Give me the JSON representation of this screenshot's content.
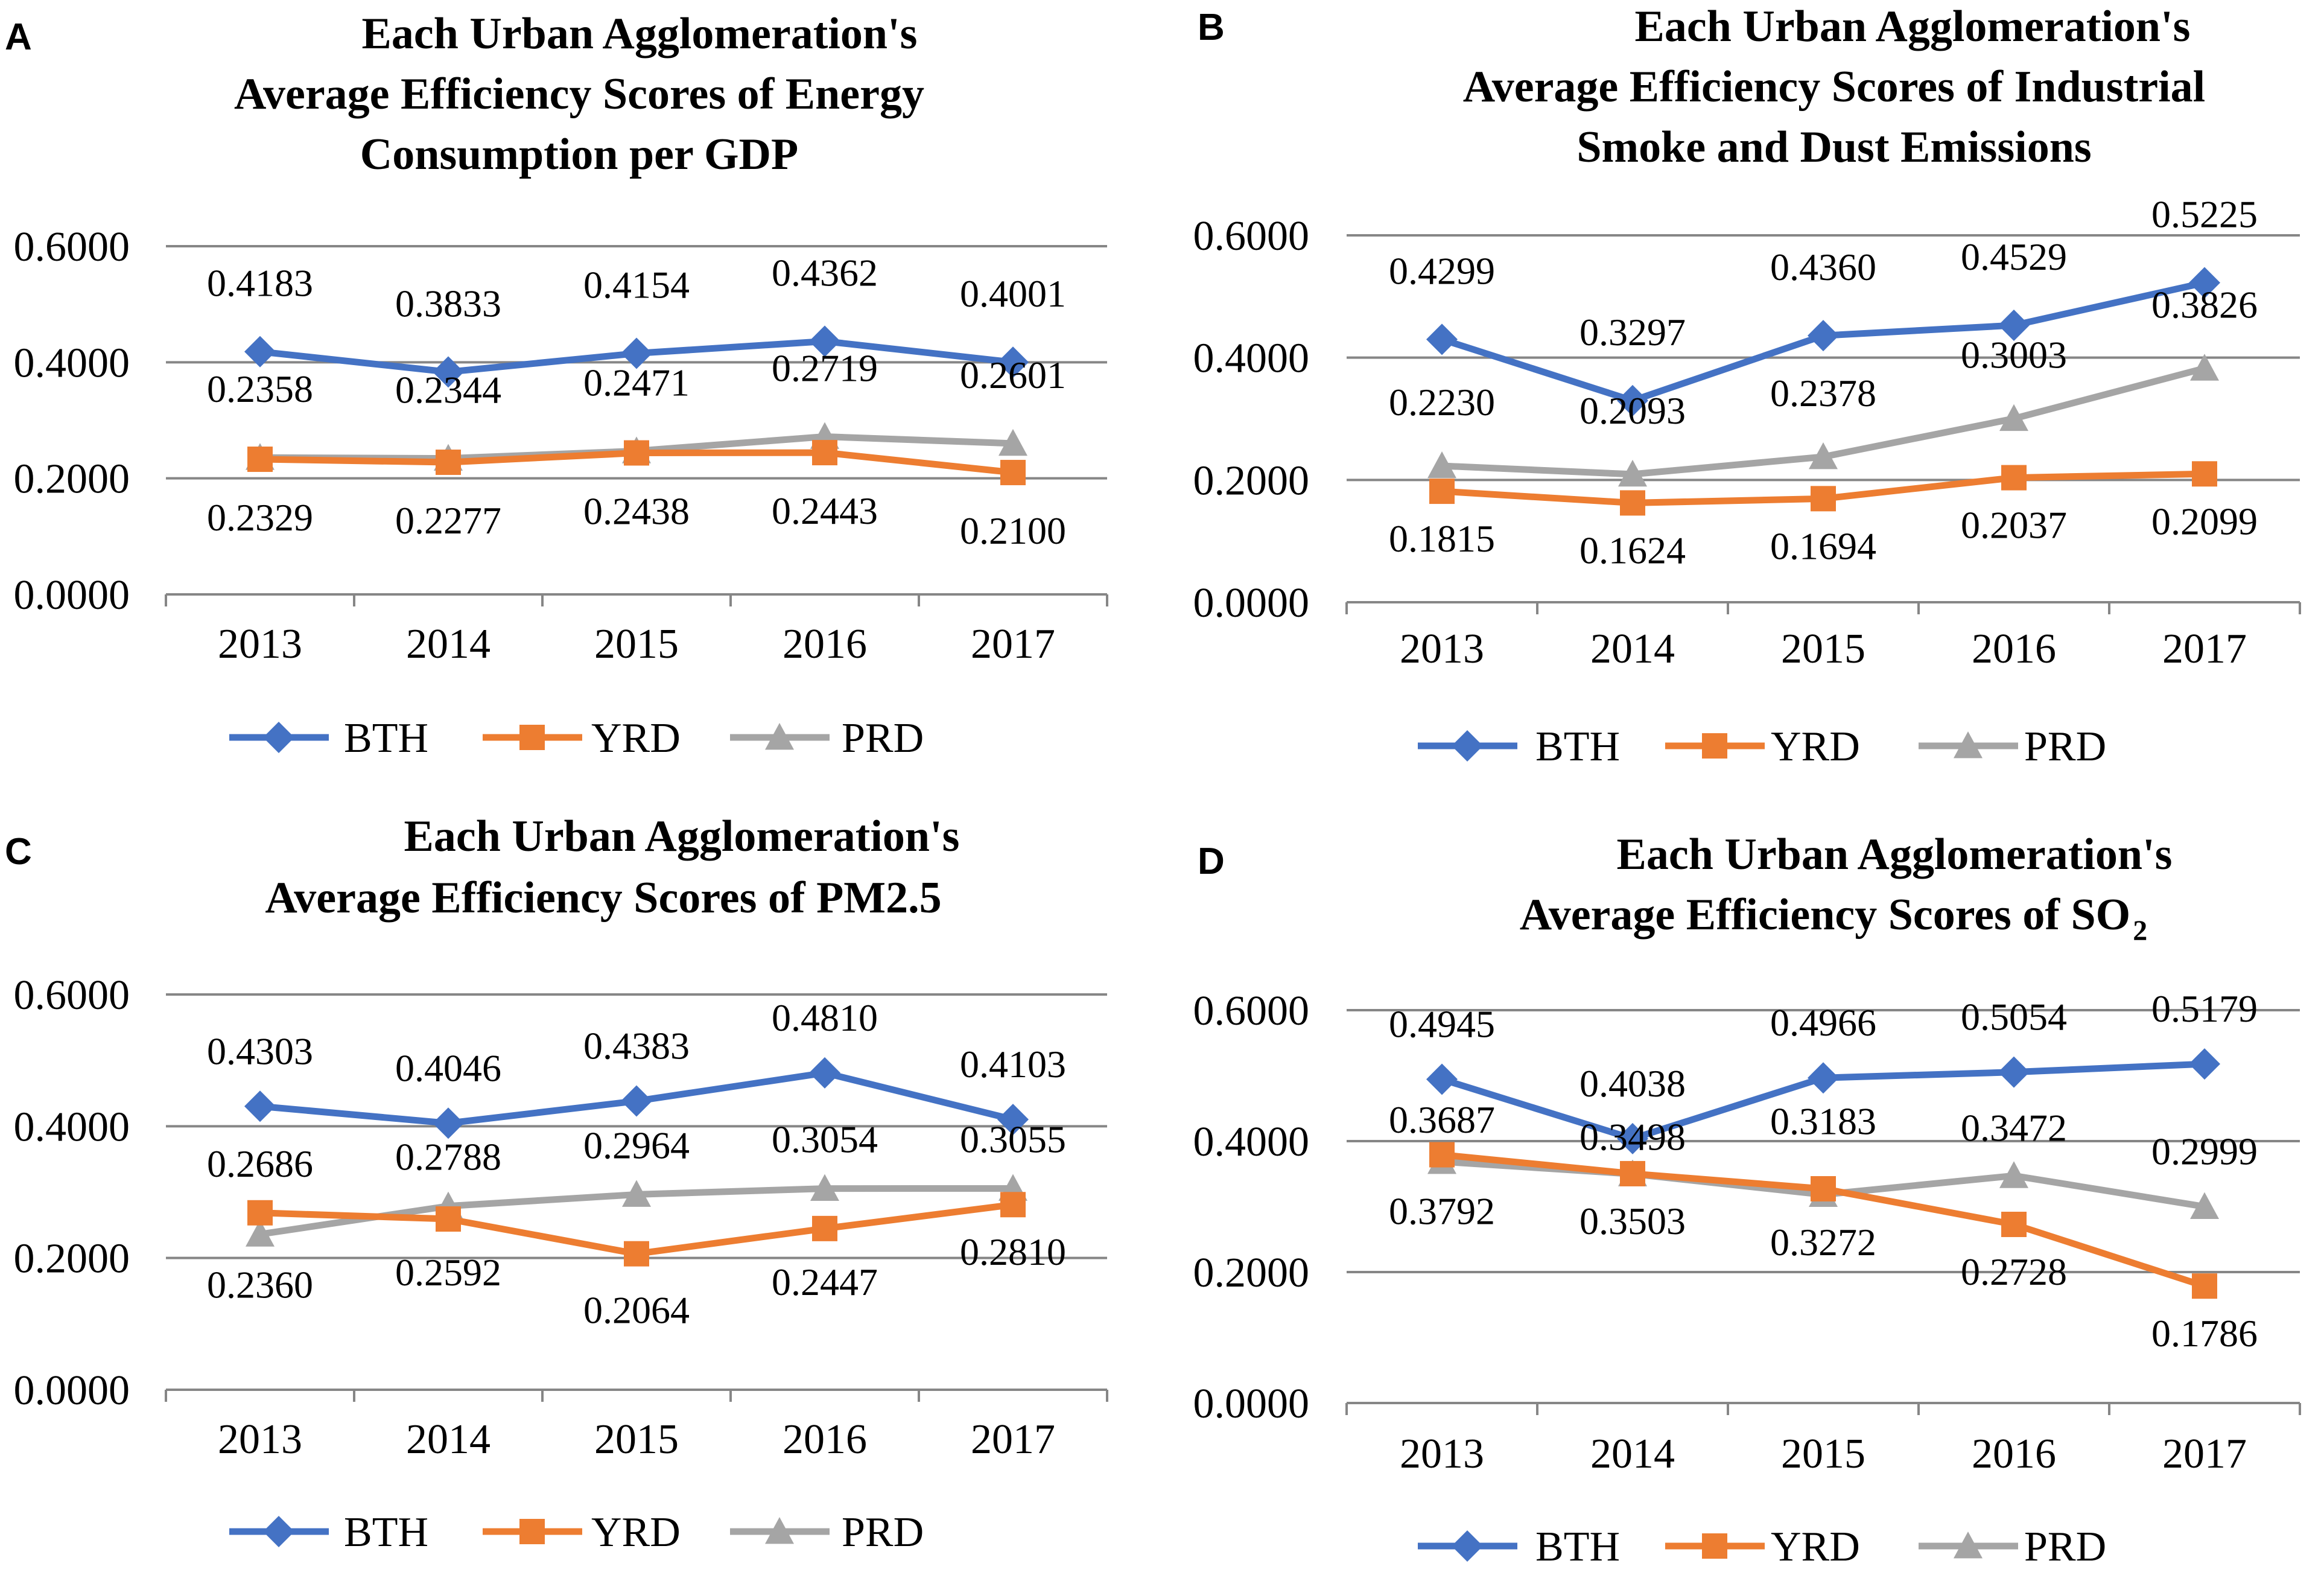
{
  "series_names": [
    "BTH",
    "YRD",
    "PRD"
  ],
  "colors": {
    "BTH": "#4472C4",
    "YRD": "#ED7D31",
    "PRD": "#A5A5A5"
  },
  "chart_data": [
    {
      "panel": "A",
      "type": "line",
      "title_lines": [
        "Each Urban Agglomeration's",
        "Average Efficiency Scores of Energy",
        "Consumption per GDP"
      ],
      "categories": [
        "2013",
        "2014",
        "2015",
        "2016",
        "2017"
      ],
      "y_ticks": [
        "0.0000",
        "0.2000",
        "0.4000",
        "0.6000"
      ],
      "ylim": [
        0,
        0.6
      ],
      "series": [
        {
          "name": "BTH",
          "values": [
            0.4183,
            0.3833,
            0.4154,
            0.4362,
            0.4001
          ],
          "labels": [
            "0.4183",
            "0.3833",
            "0.4154",
            "0.4362",
            "0.4001"
          ]
        },
        {
          "name": "YRD",
          "values": [
            0.2329,
            0.2277,
            0.2438,
            0.2443,
            0.21
          ],
          "labels": [
            "0.2329",
            "0.2277",
            "0.2438",
            "0.2443",
            "0.2100"
          ]
        },
        {
          "name": "PRD",
          "values": [
            0.2358,
            0.2344,
            0.2471,
            0.2719,
            0.2601
          ],
          "labels": [
            "0.2358",
            "0.2344",
            "0.2471",
            "0.2719",
            "0.2601"
          ]
        }
      ],
      "legend": "bottom"
    },
    {
      "panel": "B",
      "type": "line",
      "title_lines": [
        "Each Urban Agglomeration's",
        "Average Efficiency Scores of Industrial",
        "Smoke and Dust Emissions"
      ],
      "categories": [
        "2013",
        "2014",
        "2015",
        "2016",
        "2017"
      ],
      "y_ticks": [
        "0.0000",
        "0.2000",
        "0.4000",
        "0.6000"
      ],
      "ylim": [
        0,
        0.6
      ],
      "series": [
        {
          "name": "BTH",
          "values": [
            0.4299,
            0.3297,
            0.436,
            0.4529,
            0.5225
          ],
          "labels": [
            "0.4299",
            "0.3297",
            "0.4360",
            "0.4529",
            "0.5225"
          ]
        },
        {
          "name": "YRD",
          "values": [
            0.1815,
            0.1624,
            0.1694,
            0.2037,
            0.2099
          ],
          "labels": [
            "0.1815",
            "0.1624",
            "0.1694",
            "0.2037",
            "0.2099"
          ]
        },
        {
          "name": "PRD",
          "values": [
            0.223,
            0.2093,
            0.2378,
            0.3003,
            0.3826
          ],
          "labels": [
            "0.2230",
            "0.2093",
            "0.2378",
            "0.3003",
            "0.3826"
          ]
        }
      ],
      "legend": "bottom"
    },
    {
      "panel": "C",
      "type": "line",
      "title_lines": [
        "Each Urban Agglomeration's",
        "Average Efficiency Scores of PM2.5"
      ],
      "categories": [
        "2013",
        "2014",
        "2015",
        "2016",
        "2017"
      ],
      "y_ticks": [
        "0.0000",
        "0.2000",
        "0.4000",
        "0.6000"
      ],
      "ylim": [
        0,
        0.6
      ],
      "series": [
        {
          "name": "BTH",
          "values": [
            0.4303,
            0.4046,
            0.4383,
            0.481,
            0.4103
          ],
          "labels": [
            "0.4303",
            "0.4046",
            "0.4383",
            "0.4810",
            "0.4103"
          ]
        },
        {
          "name": "YRD",
          "values": [
            0.2686,
            0.2592,
            0.2064,
            0.2447,
            0.281
          ],
          "labels": [
            "0.2686",
            "0.2592",
            "0.2064",
            "0.2447",
            "0.2810"
          ]
        },
        {
          "name": "PRD",
          "values": [
            0.236,
            0.2788,
            0.2964,
            0.3054,
            0.3055
          ],
          "labels": [
            "0.2360",
            "0.2788",
            "0.2964",
            "0.3054",
            "0.3055"
          ]
        }
      ],
      "legend": "bottom"
    },
    {
      "panel": "D",
      "type": "line",
      "title_lines": [
        "Each Urban Agglomeration's",
        "Average Efficiency Scores of SO"
      ],
      "title_subscript": "2",
      "categories": [
        "2013",
        "2014",
        "2015",
        "2016",
        "2017"
      ],
      "y_ticks": [
        "0.0000",
        "0.2000",
        "0.4000",
        "0.6000"
      ],
      "ylim": [
        0,
        0.6
      ],
      "series": [
        {
          "name": "BTH",
          "values": [
            0.4945,
            0.4038,
            0.4966,
            0.5054,
            0.5179
          ],
          "labels": [
            "0.4945",
            "0.4038",
            "0.4966",
            "0.5054",
            "0.5179"
          ]
        },
        {
          "name": "YRD",
          "values": [
            0.3792,
            0.3503,
            0.3272,
            0.2728,
            0.1786
          ],
          "labels": [
            "0.3792",
            "0.3503",
            "0.3272",
            "0.2728",
            "0.1786"
          ]
        },
        {
          "name": "PRD",
          "values": [
            0.3687,
            0.3498,
            0.3183,
            0.3472,
            0.2999
          ],
          "labels": [
            "0.3687",
            "0.3498",
            "0.3183",
            "0.3472",
            "0.2999"
          ]
        }
      ],
      "legend": "bottom"
    }
  ]
}
